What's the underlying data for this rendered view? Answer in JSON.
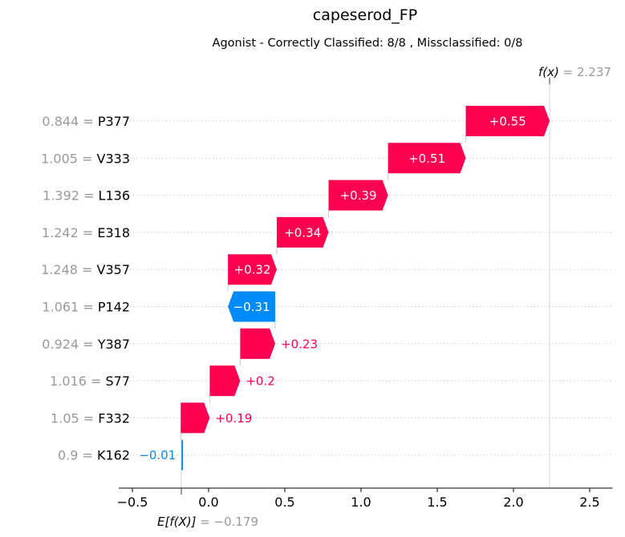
{
  "title": "capeserod_FP",
  "subtitle": "Agonist - Correctly Classified: 8/8 , Missclassified: 0/8",
  "colors": {
    "positive": "#ff0051",
    "negative": "#008bfb",
    "muted": "#999999",
    "grid": "#cccccc"
  },
  "chart_data": {
    "type": "bar",
    "subtype": "waterfall",
    "base_value": -0.179,
    "base_label_math": "E[f(X)]",
    "base_label_value": "= −0.179",
    "output_value": 2.237,
    "output_label_math": "f(x)",
    "output_label_value": "= 2.237",
    "xlim": [
      -0.6,
      2.65
    ],
    "xticks": [
      {
        "value": -0.5,
        "label": "−0.5"
      },
      {
        "value": 0.0,
        "label": "0.0"
      },
      {
        "value": 0.5,
        "label": "0.5"
      },
      {
        "value": 1.0,
        "label": "1.0"
      },
      {
        "value": 1.5,
        "label": "1.5"
      },
      {
        "value": 2.0,
        "label": "2.0"
      },
      {
        "value": 2.5,
        "label": "2.5"
      }
    ],
    "features": [
      {
        "value_text": "0.844",
        "name": "P377",
        "start": 1.687,
        "end": 2.237,
        "label": "+0.55"
      },
      {
        "value_text": "1.005",
        "name": "V333",
        "start": 1.177,
        "end": 1.687,
        "label": "+0.51"
      },
      {
        "value_text": "1.392",
        "name": "L136",
        "start": 0.787,
        "end": 1.177,
        "label": "+0.39"
      },
      {
        "value_text": "1.242",
        "name": "E318",
        "start": 0.447,
        "end": 0.787,
        "label": "+0.34"
      },
      {
        "value_text": "1.248",
        "name": "V357",
        "start": 0.127,
        "end": 0.447,
        "label": "+0.32"
      },
      {
        "value_text": "1.061",
        "name": "P142",
        "start": 0.437,
        "end": 0.127,
        "label": "−0.31"
      },
      {
        "value_text": "0.924",
        "name": "Y387",
        "start": 0.207,
        "end": 0.437,
        "label": "+0.23"
      },
      {
        "value_text": "1.016",
        "name": "S77",
        "start": 0.007,
        "end": 0.207,
        "label": "+0.2"
      },
      {
        "value_text": "1.05",
        "name": "F332",
        "start": -0.183,
        "end": 0.007,
        "label": "+0.19"
      },
      {
        "value_text": "0.9",
        "name": "K162",
        "start": -0.173,
        "end": -0.183,
        "label": "−0.01"
      }
    ]
  }
}
